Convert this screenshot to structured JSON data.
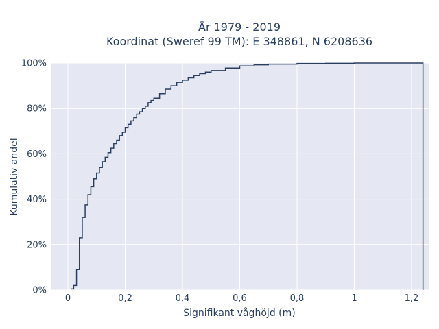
{
  "chart_data": {
    "type": "line",
    "title": [
      "År 1979 - 2019",
      "Koordinat (Sweref 99 TM): E 348861, N 6208636"
    ],
    "xlabel": "Signifikant våghöjd (m)",
    "ylabel": "Kumulativ andel",
    "xlim": [
      -0.06,
      1.26
    ],
    "ylim": [
      0,
      100
    ],
    "x_ticks": [
      {
        "value": 0,
        "label": "0"
      },
      {
        "value": 0.2,
        "label": "0,2"
      },
      {
        "value": 0.4,
        "label": "0,4"
      },
      {
        "value": 0.6,
        "label": "0,6"
      },
      {
        "value": 0.8,
        "label": "0,8"
      },
      {
        "value": 1.0,
        "label": "1"
      },
      {
        "value": 1.2,
        "label": "1,2"
      }
    ],
    "y_ticks": [
      {
        "value": 0,
        "label": "0%"
      },
      {
        "value": 20,
        "label": "20%"
      },
      {
        "value": 40,
        "label": "40%"
      },
      {
        "value": 60,
        "label": "60%"
      },
      {
        "value": 80,
        "label": "80%"
      },
      {
        "value": 100,
        "label": "100%"
      }
    ],
    "grid": true,
    "colors": {
      "background": "#e5e8f2",
      "grid": "#ffffff",
      "line": "#2a3f5f",
      "text": "#2a3f5f"
    },
    "series": [
      {
        "name": "",
        "step": "hv",
        "x": [
          0.01,
          0.02,
          0.03,
          0.04,
          0.05,
          0.06,
          0.07,
          0.08,
          0.09,
          0.1,
          0.11,
          0.12,
          0.13,
          0.14,
          0.15,
          0.16,
          0.17,
          0.18,
          0.19,
          0.2,
          0.21,
          0.22,
          0.23,
          0.24,
          0.25,
          0.26,
          0.27,
          0.28,
          0.29,
          0.3,
          0.32,
          0.34,
          0.36,
          0.38,
          0.4,
          0.42,
          0.44,
          0.46,
          0.48,
          0.5,
          0.55,
          0.6,
          0.65,
          0.7,
          0.8,
          0.9,
          1.0,
          1.1,
          1.24,
          1.24
        ],
        "y": [
          0.5,
          2,
          9,
          23,
          32,
          37.5,
          42,
          45.5,
          49,
          51.5,
          54,
          56.5,
          58.5,
          60.5,
          62.5,
          64.5,
          66,
          68,
          69.5,
          71.5,
          73,
          74.5,
          76,
          77.5,
          78.5,
          80,
          81,
          82.5,
          83.5,
          84.5,
          86.5,
          88.5,
          90,
          91.5,
          92.5,
          93.5,
          94.5,
          95.3,
          96,
          96.7,
          97.8,
          98.7,
          99.2,
          99.5,
          99.8,
          99.9,
          100,
          100,
          100,
          0
        ]
      }
    ]
  }
}
